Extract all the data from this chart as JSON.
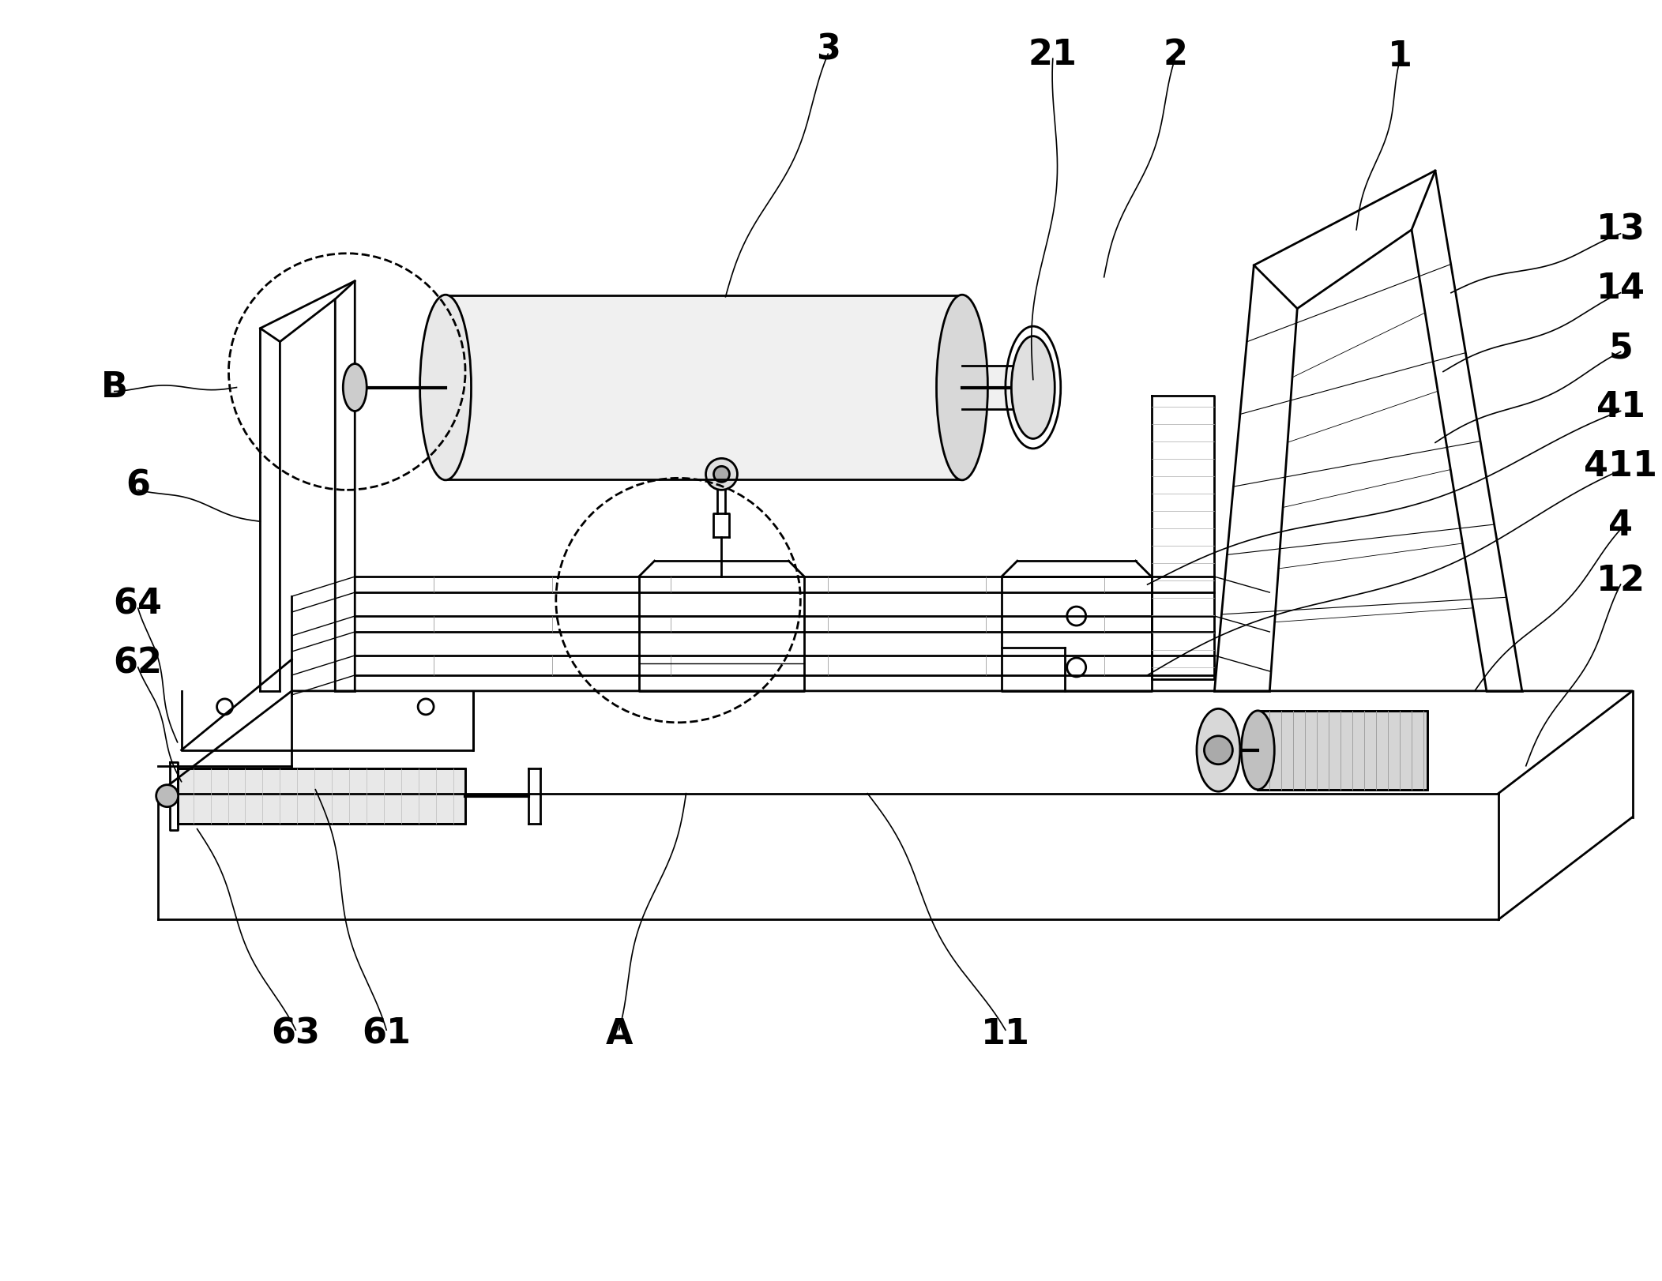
{
  "background_color": "#ffffff",
  "line_color": "#000000",
  "lw": 2.0,
  "tlw": 1.0,
  "figsize": [
    21.04,
    16.22
  ],
  "dpi": 100
}
